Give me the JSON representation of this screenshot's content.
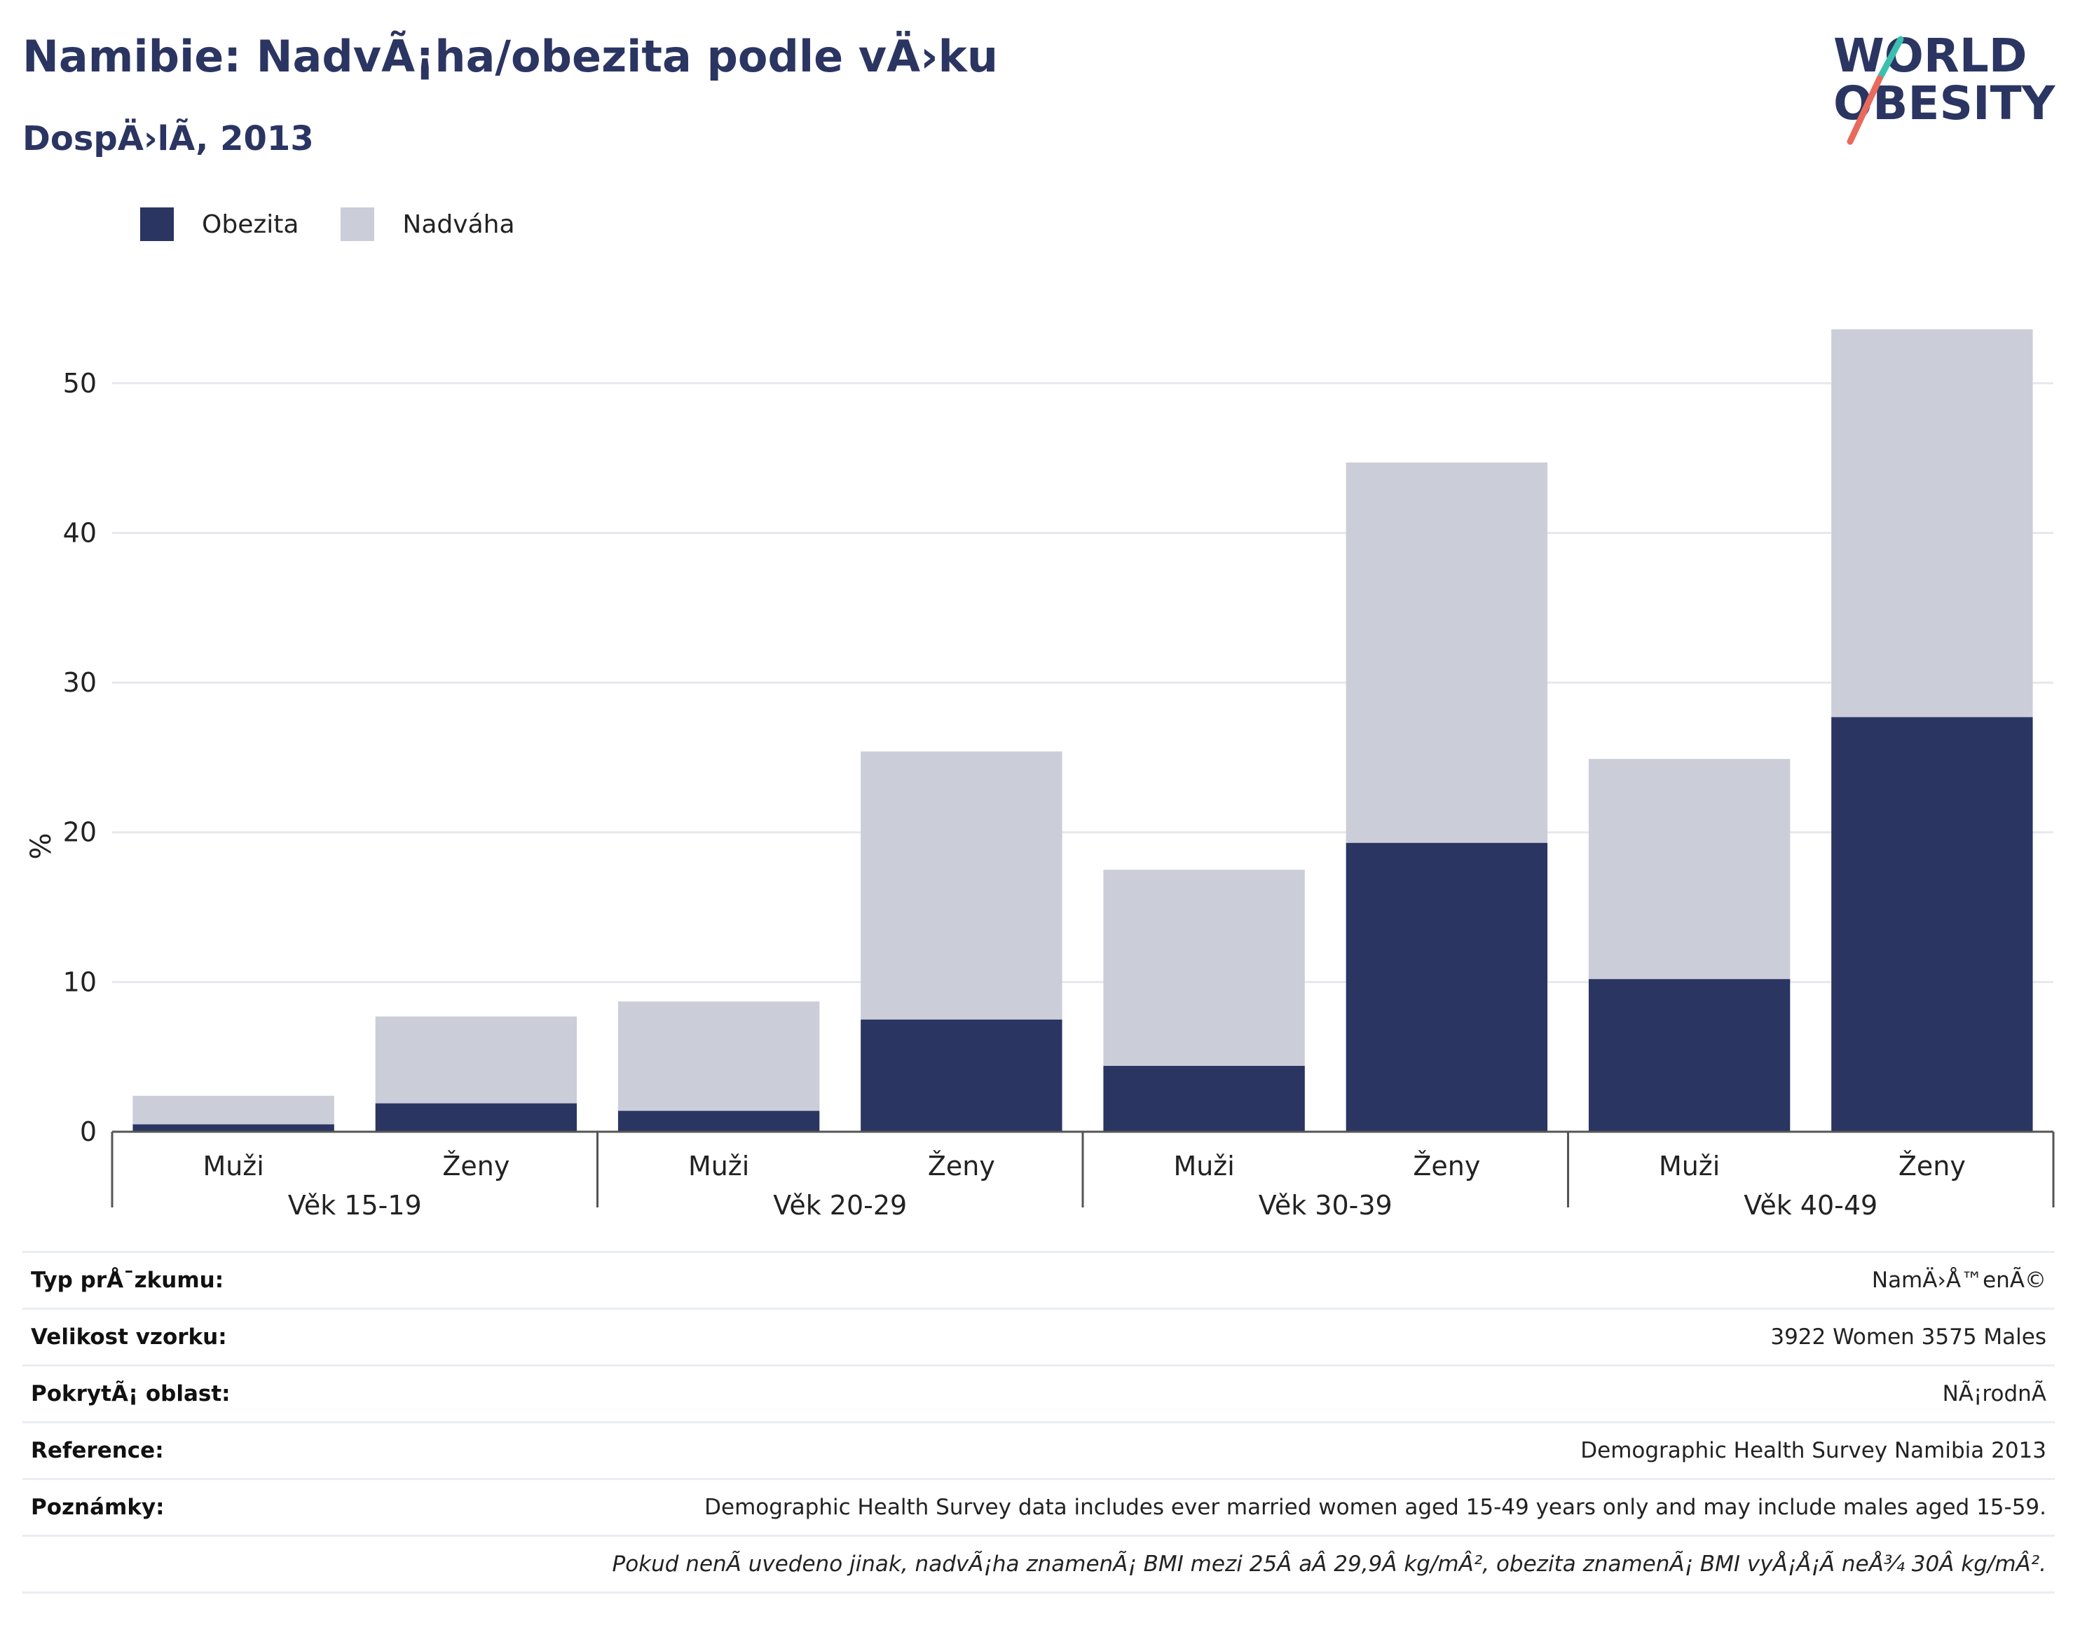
{
  "header": {
    "title": "Namibie: NadvÃ¡ha/obezita podle vÄ›ku",
    "subtitle": "DospÄ›lÃ­, 2013"
  },
  "logo": {
    "line1": "WORLD",
    "line2": "OBESITY"
  },
  "legend": [
    {
      "label": "Obezita",
      "color": "#2b3562"
    },
    {
      "label": "Nadváha",
      "color": "#cbcdd9"
    }
  ],
  "chart_data": {
    "type": "bar",
    "stacked": true,
    "ylabel": "%",
    "ylim": [
      0,
      55
    ],
    "yticks": [
      0,
      10,
      20,
      30,
      40,
      50
    ],
    "grid": true,
    "legend_position": "top-left",
    "groups": [
      "Věk 15-19",
      "Věk 20-29",
      "Věk 30-39",
      "Věk 40-49"
    ],
    "categories": [
      "Muži",
      "Ženy",
      "Muži",
      "Ženy",
      "Muži",
      "Ženy",
      "Muži",
      "Ženy"
    ],
    "series": [
      {
        "name": "Obezita",
        "color": "#2b3562",
        "values": [
          0.5,
          1.9,
          1.4,
          7.5,
          4.4,
          19.3,
          10.2,
          27.7
        ]
      },
      {
        "name": "Nadváha",
        "color": "#cbcdd9",
        "values": [
          1.9,
          5.8,
          7.3,
          17.9,
          13.1,
          25.4,
          14.7,
          25.9
        ]
      }
    ]
  },
  "details": [
    {
      "key": "Typ prÅ¯zkumu:",
      "value": "NamÄ›Å™enÃ©"
    },
    {
      "key": "Velikost vzorku:",
      "value": "3922 Women 3575 Males"
    },
    {
      "key": "PokrytÃ¡ oblast:",
      "value": "NÃ¡rodnÃ­"
    },
    {
      "key": "Reference:",
      "value": "Demographic Health Survey Namibia 2013"
    },
    {
      "key": "Poznámky:",
      "value": "Demographic Health Survey data includes ever married women aged 15-49 years only and may include males aged 15-59."
    }
  ],
  "footnote": "Pokud nenÃ­ uvedeno jinak, nadvÃ¡ha znamenÃ¡ BMI mezi 25Â aÂ 29,9Â kg/mÂ², obezita znamenÃ¡ BMI vyÅ¡Å¡Ã­ neÅ¾ 30Â kg/mÂ²."
}
